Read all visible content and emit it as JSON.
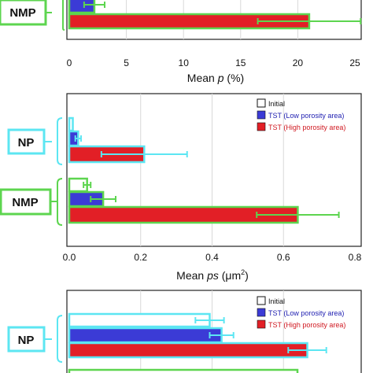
{
  "chart_data": [
    {
      "type": "bar",
      "orientation": "horizontal",
      "group_labels": [
        "NMP"
      ],
      "series": [
        {
          "name": "",
          "color": "#3b3bd6",
          "group": "NMP",
          "value": 2.2,
          "error": 0.9
        },
        {
          "name": "",
          "color": "#e21f26",
          "group": "NMP",
          "value": 21.0,
          "error": 4.5
        }
      ],
      "xlabel_pre": "Mean ",
      "xlabel_var": "p",
      "xlabel_post": " (%)",
      "xlim": [
        0,
        25
      ],
      "xticks": [
        "0",
        "5",
        "10",
        "15",
        "20",
        "25"
      ],
      "grid": true
    },
    {
      "type": "bar",
      "orientation": "horizontal",
      "group_labels": [
        "NP",
        "NMP"
      ],
      "series": [
        {
          "name": "Initial",
          "color": "#ffffff",
          "values": [
            0.01,
            0.05
          ],
          "errors": [
            0.0,
            0.01
          ]
        },
        {
          "name": "TST (Low porosity area)",
          "color": "#3b3bd6",
          "values": [
            0.025,
            0.095
          ],
          "errors": [
            0.008,
            0.035
          ]
        },
        {
          "name": "TST (High porosity area)",
          "color": "#e21f26",
          "values": [
            0.21,
            0.64
          ],
          "errors": [
            0.12,
            0.115
          ]
        }
      ],
      "xlabel_pre": "Mean ",
      "xlabel_var": "ps",
      "xlabel_post": " (μm",
      "xlabel_sup": "2",
      "xlabel_end": ")",
      "xlim": [
        0,
        0.8
      ],
      "xticks": [
        "0.0",
        "0.2",
        "0.4",
        "0.6",
        "0.8"
      ],
      "legend_position": "top-right",
      "grid": true
    },
    {
      "type": "bar",
      "orientation": "horizontal",
      "group_labels": [
        "NP"
      ],
      "series": [
        {
          "name": "Initial",
          "color": "#ffffff",
          "values": [
            0.59
          ],
          "errors": [
            0.06
          ]
        },
        {
          "name": "TST (Low porosity area)",
          "color": "#3b3bd6",
          "values": [
            0.64
          ],
          "errors": [
            0.05
          ]
        },
        {
          "name": "TST (High porosity area)",
          "color": "#e21f26",
          "values": [
            1.0
          ],
          "errors": [
            0.08
          ]
        }
      ],
      "xlim": [
        0,
        1.2
      ],
      "legend_position": "top-right",
      "grid": true
    }
  ]
}
